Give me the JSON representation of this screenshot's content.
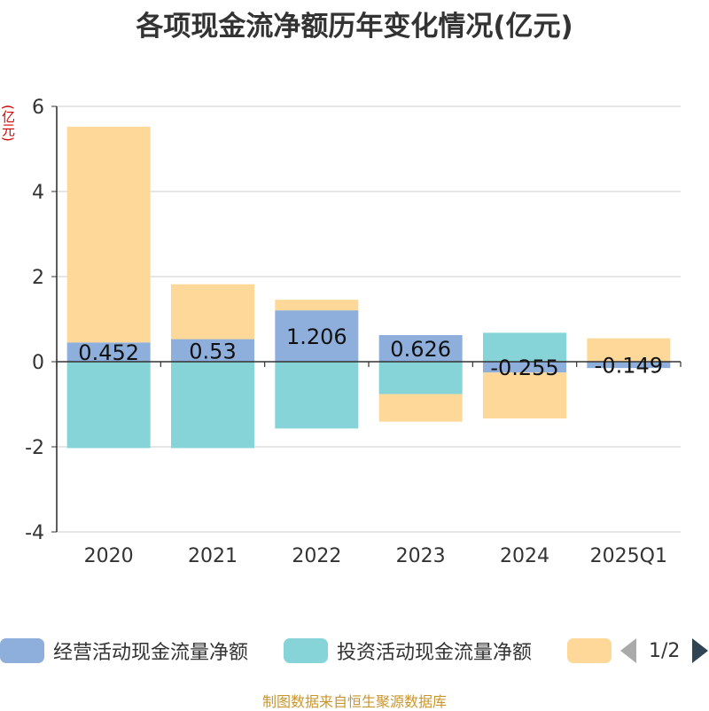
{
  "title": "各项现金流净额历年变化情况(亿元)",
  "unit_label": "(亿元)",
  "source": "制图数据来自恒生聚源数据库",
  "pager": {
    "text": "1/2"
  },
  "chart_data": {
    "type": "bar",
    "stacked": true,
    "title": "各项现金流净额历年变化情况(亿元)",
    "ylabel": "(亿元)",
    "ylim": [
      -4,
      6
    ],
    "yticks": [
      -4,
      -2,
      0,
      2,
      4,
      6
    ],
    "grid": true,
    "legend_position": "bottom",
    "categories": [
      "2020",
      "2021",
      "2022",
      "2023",
      "2024",
      "2025Q1"
    ],
    "series": [
      {
        "name": "经营活动现金流量净额",
        "color": "#8eaedb",
        "values": [
          0.452,
          0.53,
          1.206,
          0.626,
          -0.255,
          -0.149
        ],
        "labels": [
          "0.452",
          "0.53",
          "1.206",
          "0.626",
          "-0.255",
          "-0.149"
        ]
      },
      {
        "name": "投资活动现金流量净额",
        "color": "#86d4d8",
        "values": [
          -2.03,
          -2.03,
          -1.57,
          -0.76,
          0.68,
          0.0
        ]
      },
      {
        "name": "",
        "color": "#fdd898",
        "values": [
          5.07,
          1.29,
          0.25,
          -0.65,
          -1.08,
          0.55
        ]
      }
    ]
  }
}
